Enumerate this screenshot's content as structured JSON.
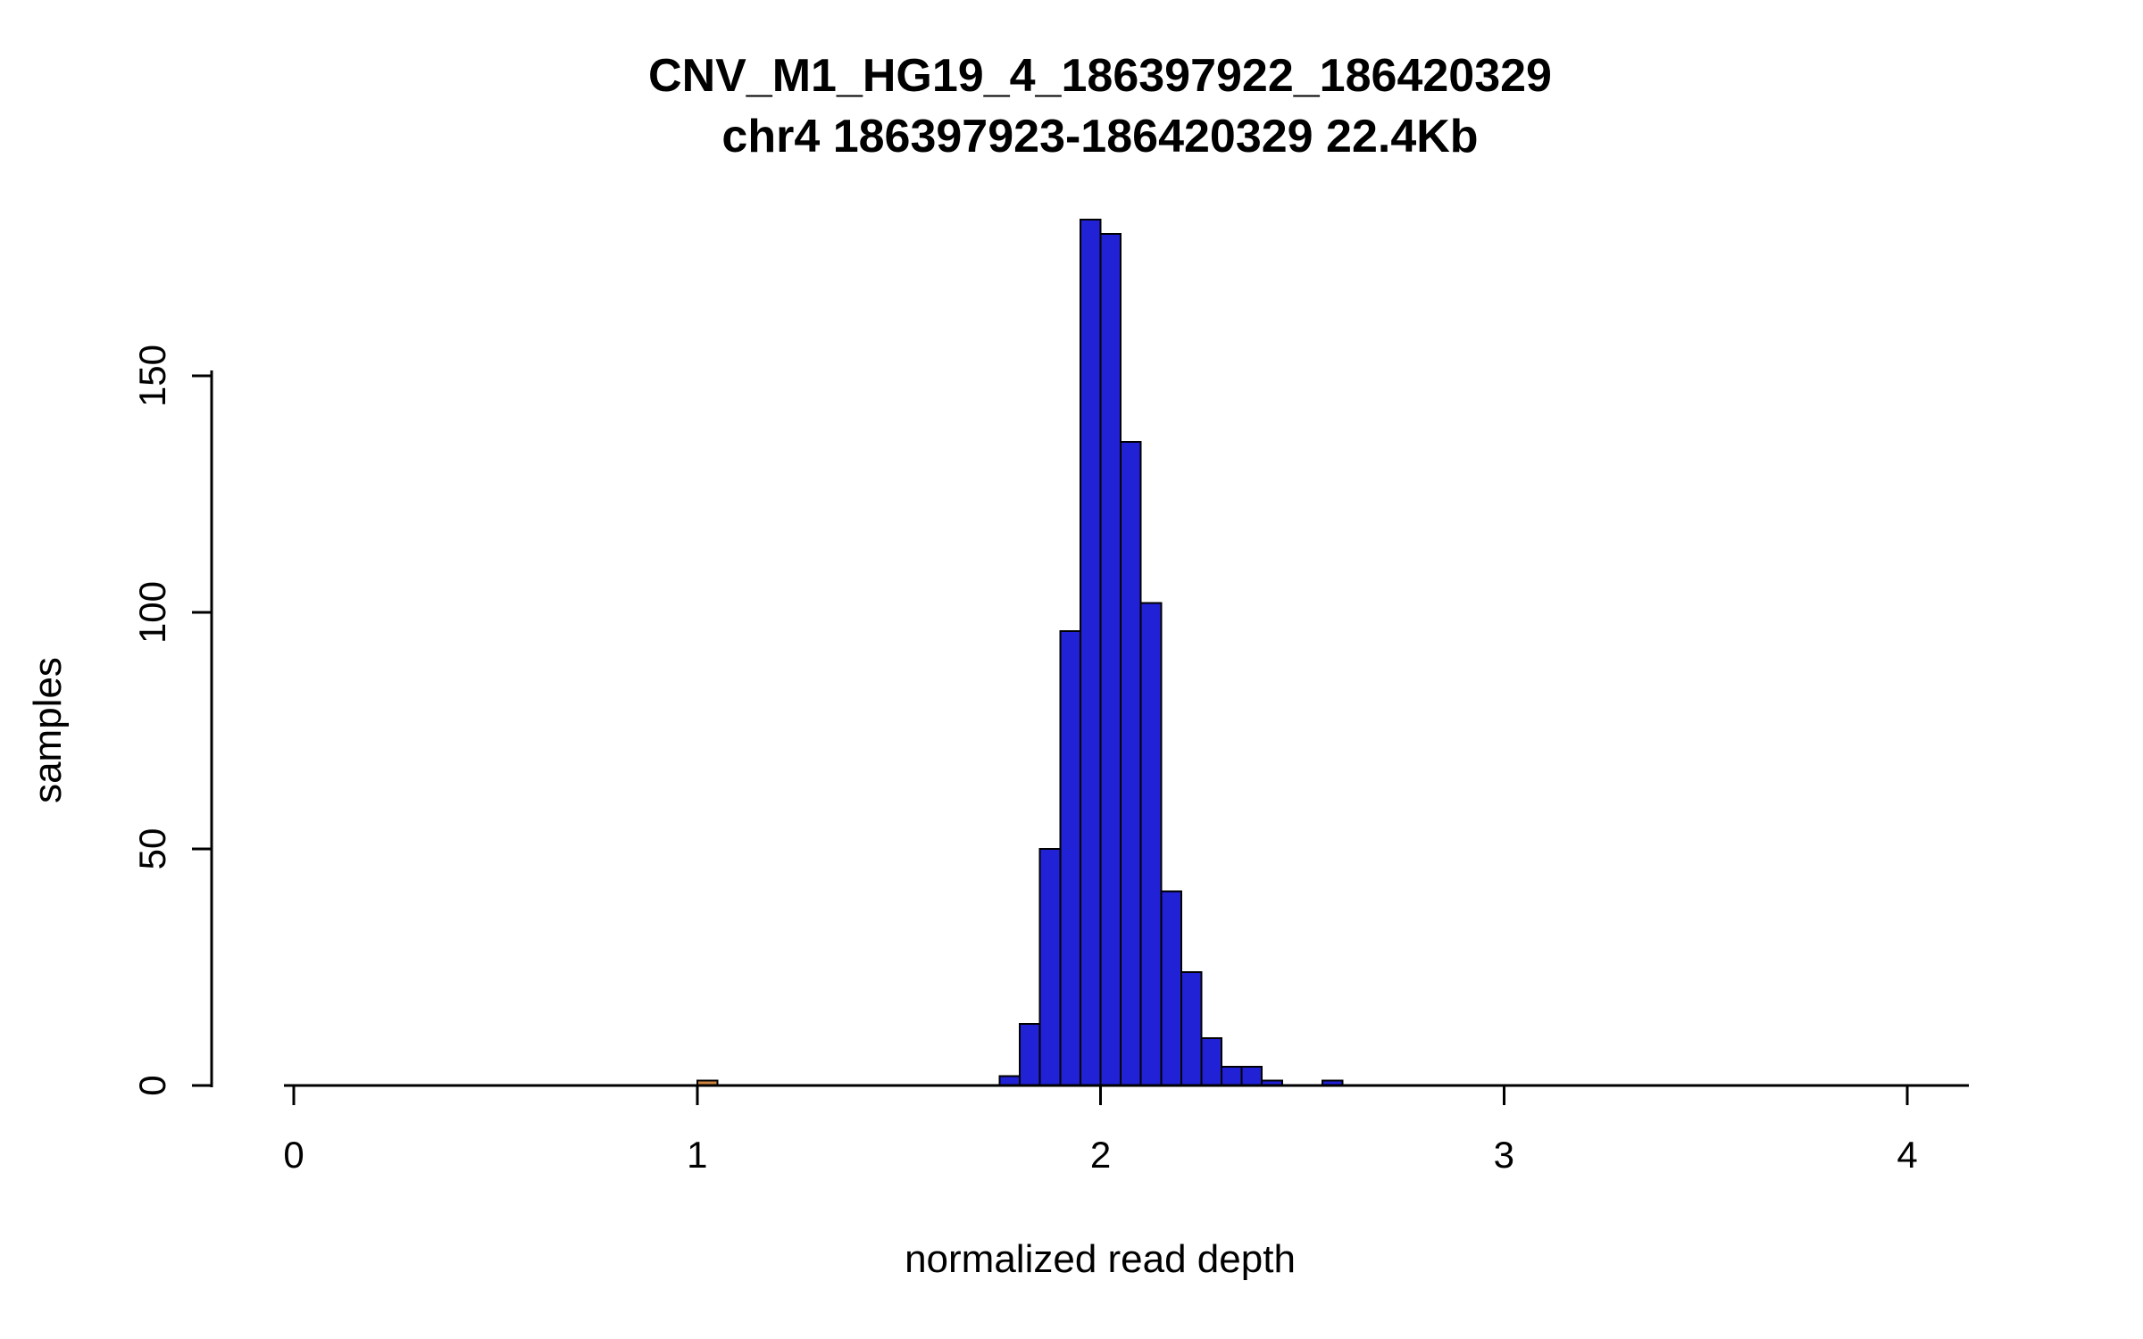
{
  "chart_data": {
    "type": "bar",
    "subtype": "histogram",
    "title": "CNV_M1_HG19_4_186397922_186420329",
    "subtitle": "chr4 186397923-186420329 22.4Kb",
    "xlabel": "normalized read depth",
    "ylabel": "samples",
    "xlim": [
      0,
      4.15
    ],
    "ylim": [
      0,
      185
    ],
    "x_ticks": [
      0,
      1,
      2,
      3,
      4
    ],
    "y_ticks": [
      0,
      50,
      100,
      150
    ],
    "bin_width": 0.05,
    "default_bar_color": "#2121D6",
    "bar_border_color": "#000000",
    "grid": false,
    "legend": "none",
    "bins": [
      {
        "x": 1.0,
        "count": 1,
        "color": "#CD853F"
      },
      {
        "x": 1.75,
        "count": 2
      },
      {
        "x": 1.8,
        "count": 13
      },
      {
        "x": 1.85,
        "count": 50
      },
      {
        "x": 1.9,
        "count": 96
      },
      {
        "x": 1.95,
        "count": 183
      },
      {
        "x": 2.0,
        "count": 180
      },
      {
        "x": 2.05,
        "count": 136
      },
      {
        "x": 2.1,
        "count": 102
      },
      {
        "x": 2.15,
        "count": 41
      },
      {
        "x": 2.2,
        "count": 24
      },
      {
        "x": 2.25,
        "count": 10
      },
      {
        "x": 2.3,
        "count": 4
      },
      {
        "x": 2.35,
        "count": 4
      },
      {
        "x": 2.4,
        "count": 1
      },
      {
        "x": 2.55,
        "count": 1
      }
    ]
  }
}
